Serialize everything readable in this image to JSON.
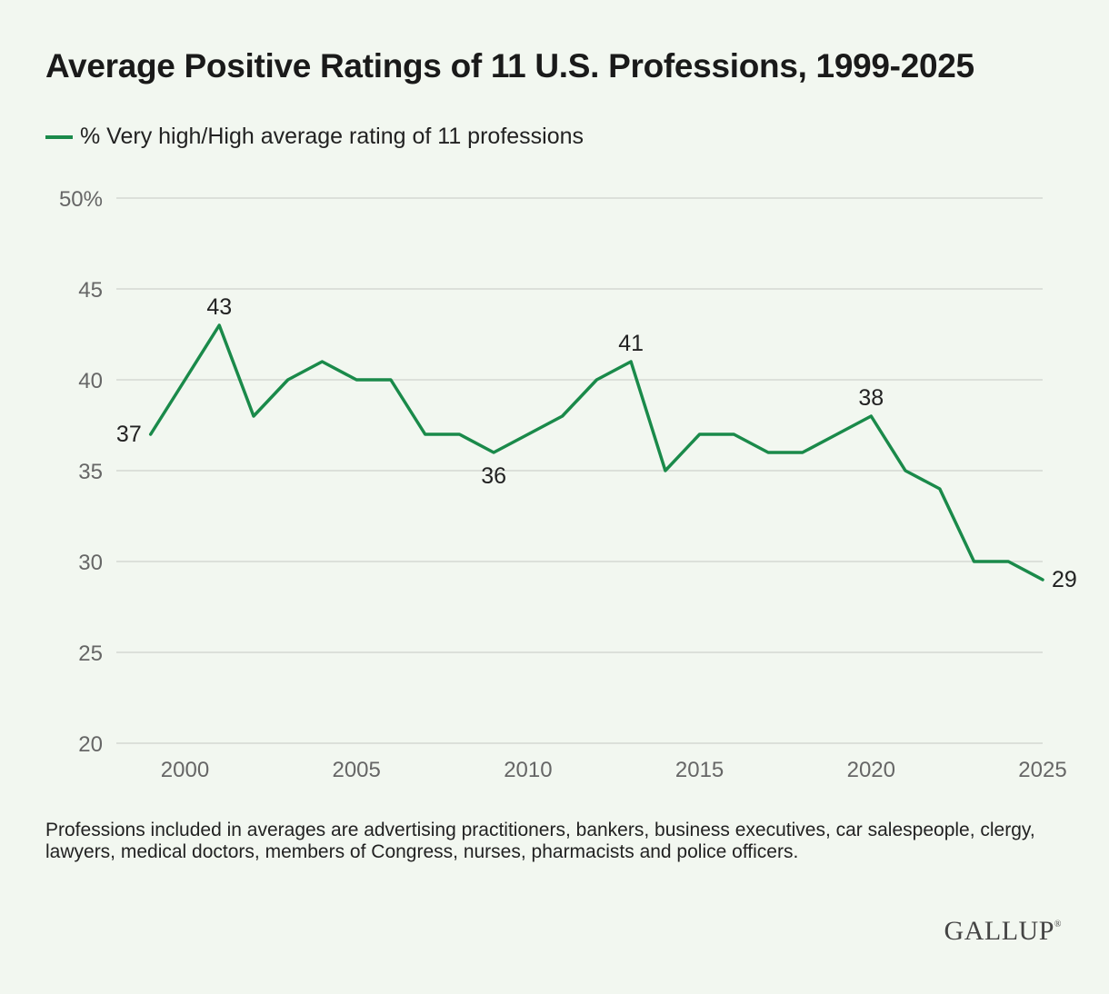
{
  "title": "Average Positive Ratings of 11 U.S. Professions, 1999-2025",
  "legend": {
    "label": "% Very high/High average rating of 11 professions"
  },
  "colors": {
    "line": "#1a8a4a",
    "grid": "#d4d9d2",
    "background": "#f2f7f0"
  },
  "note": "Professions included in averages are advertising practitioners, bankers, business executives, car salespeople, clergy, lawyers, medical doctors, members of Congress, nurses, pharmacists and police officers.",
  "logo": {
    "text": "GALLUP",
    "mark": "®"
  },
  "chart_data": {
    "type": "line",
    "title": "Average Positive Ratings of 11 U.S. Professions, 1999-2025",
    "xlabel": "",
    "ylabel": "",
    "x": [
      1999,
      2000,
      2001,
      2002,
      2003,
      2004,
      2005,
      2006,
      2007,
      2008,
      2009,
      2010,
      2011,
      2012,
      2013,
      2014,
      2015,
      2016,
      2017,
      2018,
      2019,
      2020,
      2021,
      2022,
      2023,
      2024,
      2025
    ],
    "series": [
      {
        "name": "% Very high/High average rating of 11 professions",
        "values": [
          37,
          40,
          43,
          38,
          40,
          41,
          40,
          40,
          37,
          37,
          36,
          37,
          38,
          40,
          41,
          35,
          37,
          37,
          36,
          36,
          37,
          38,
          35,
          34,
          30,
          30,
          29
        ]
      }
    ],
    "xlim": [
      1998,
      2025
    ],
    "ylim": [
      20,
      50
    ],
    "x_ticks": [
      2000,
      2005,
      2010,
      2015,
      2020,
      2025
    ],
    "y_ticks": [
      20,
      25,
      30,
      35,
      40,
      45,
      50
    ],
    "y_tick_labels": [
      "20",
      "25",
      "30",
      "35",
      "40",
      "45",
      "50%"
    ],
    "data_labels": [
      {
        "x": 1999,
        "text": "37",
        "position": "left"
      },
      {
        "x": 2001,
        "text": "43",
        "position": "above"
      },
      {
        "x": 2009,
        "text": "36",
        "position": "below"
      },
      {
        "x": 2013,
        "text": "41",
        "position": "above"
      },
      {
        "x": 2020,
        "text": "38",
        "position": "above"
      },
      {
        "x": 2025,
        "text": "29",
        "position": "right"
      }
    ],
    "grid": true,
    "legend_position": "top-left"
  }
}
